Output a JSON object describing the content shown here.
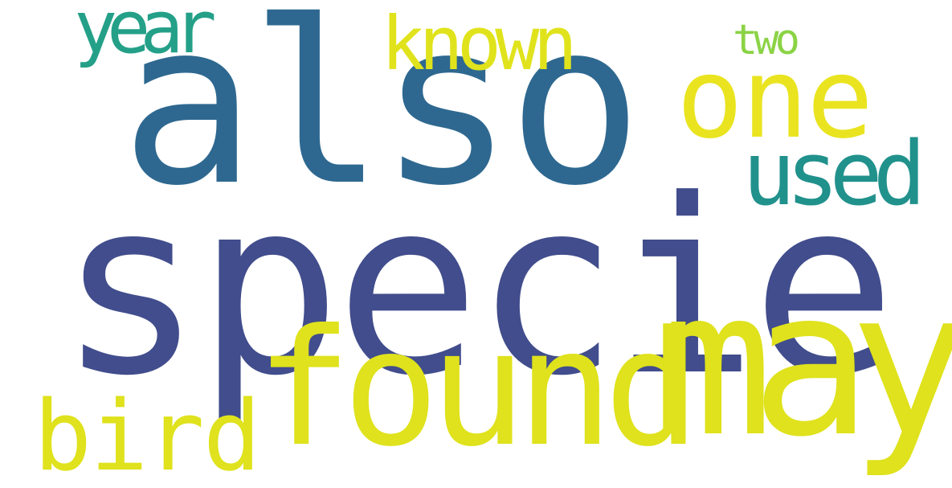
{
  "word_cloud": {
    "words": [
      {
        "text": "specie",
        "color": "#414d8c"
      },
      {
        "text": "also",
        "color": "#2e6890"
      },
      {
        "text": "found",
        "color": "#dfe21c"
      },
      {
        "text": "may",
        "color": "#dfe21c"
      },
      {
        "text": "one",
        "color": "#e9e41f"
      },
      {
        "text": "used",
        "color": "#21918c"
      },
      {
        "text": "known",
        "color": "#e0e31c"
      },
      {
        "text": "year",
        "color": "#24a088"
      },
      {
        "text": "bird",
        "color": "#dfe21c"
      },
      {
        "text": "two",
        "color": "#8bd345"
      }
    ]
  }
}
